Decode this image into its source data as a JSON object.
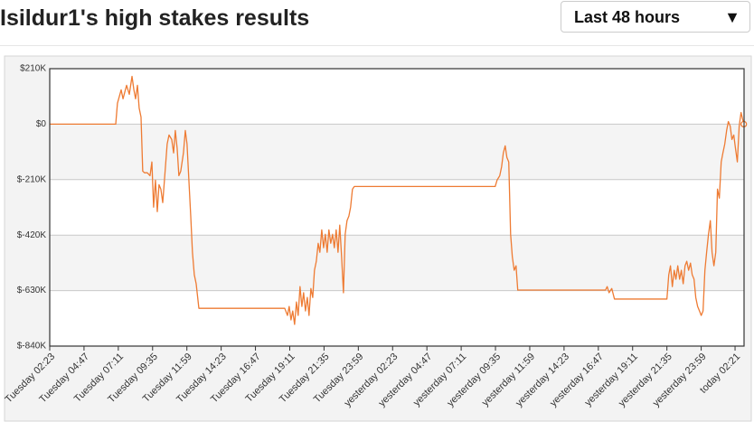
{
  "header": {
    "title": "Isildur1's high stakes results"
  },
  "dropdown": {
    "label": "Last 48 hours",
    "icon": "▼"
  },
  "chart_data": {
    "type": "line",
    "x": [
      0,
      4.62,
      4.74,
      5.0,
      5.13,
      5.38,
      5.57,
      5.76,
      5.89,
      6.01,
      6.14,
      6.26,
      6.39,
      6.51,
      6.64,
      6.83,
      7.02,
      7.15,
      7.27,
      7.4,
      7.53,
      7.65,
      7.78,
      7.91,
      8.03,
      8.22,
      8.35,
      8.54,
      8.67,
      8.79,
      8.92,
      9.04,
      9.17,
      9.36,
      9.49,
      9.61,
      9.74,
      9.87,
      9.99,
      10.12,
      10.25,
      10.44,
      16.45,
      16.64,
      16.76,
      16.89,
      17.01,
      17.14,
      17.27,
      17.39,
      17.52,
      17.65,
      17.77,
      17.9,
      18.03,
      18.15,
      18.28,
      18.41,
      18.53,
      18.66,
      18.79,
      18.91,
      19.04,
      19.17,
      19.29,
      19.42,
      19.54,
      19.67,
      19.8,
      19.92,
      20.05,
      20.18,
      20.3,
      20.43,
      20.56,
      20.68,
      20.81,
      20.94,
      21.06,
      21.19,
      21.32,
      31.18,
      31.31,
      31.5,
      31.63,
      31.75,
      31.88,
      32.0,
      32.13,
      32.26,
      32.38,
      32.51,
      32.64,
      32.76,
      38.9,
      39.02,
      39.15,
      39.34,
      39.53,
      43.2,
      43.33,
      43.45,
      43.58,
      43.71,
      43.83,
      43.96,
      44.09,
      44.21,
      44.34,
      44.47,
      44.59,
      44.72,
      44.85,
      44.97,
      45.1,
      45.22,
      45.35,
      45.48,
      45.6,
      45.73,
      45.86,
      45.98,
      46.11,
      46.24,
      46.36,
      46.49,
      46.62,
      46.74,
      46.87,
      47.0,
      47.12,
      47.25,
      47.38,
      47.5,
      47.63,
      47.75,
      47.88,
      48.0,
      48.13,
      48.26,
      48.39,
      48.58
    ],
    "series": [
      {
        "name": "Isildur1",
        "color": "#ee7b33",
        "values": [
          0,
          0,
          79000,
          130000,
          96000,
          147000,
          113000,
          181000,
          130000,
          96000,
          147000,
          61000,
          27000,
          -178000,
          -184000,
          -184000,
          -195000,
          -143000,
          -314000,
          -212000,
          -331000,
          -229000,
          -246000,
          -297000,
          -212000,
          -75000,
          -41000,
          -58000,
          -109000,
          -24000,
          -92000,
          -195000,
          -178000,
          -109000,
          -24000,
          -75000,
          -212000,
          -348000,
          -485000,
          -570000,
          -604000,
          -697000,
          -697000,
          -724000,
          -690000,
          -741000,
          -707000,
          -758000,
          -673000,
          -724000,
          -615000,
          -690000,
          -638000,
          -707000,
          -656000,
          -724000,
          -622000,
          -656000,
          -553000,
          -519000,
          -451000,
          -485000,
          -400000,
          -468000,
          -417000,
          -485000,
          -400000,
          -451000,
          -417000,
          -468000,
          -400000,
          -485000,
          -382000,
          -502000,
          -638000,
          -417000,
          -365000,
          -348000,
          -314000,
          -246000,
          -236000,
          -236000,
          -212000,
          -195000,
          -161000,
          -109000,
          -82000,
          -126000,
          -143000,
          -417000,
          -502000,
          -553000,
          -536000,
          -628000,
          -628000,
          -615000,
          -638000,
          -622000,
          -662000,
          -662000,
          -570000,
          -536000,
          -615000,
          -553000,
          -587000,
          -536000,
          -587000,
          -553000,
          -604000,
          -536000,
          -519000,
          -553000,
          -526000,
          -570000,
          -587000,
          -656000,
          -690000,
          -707000,
          -724000,
          -707000,
          -553000,
          -485000,
          -417000,
          -365000,
          -485000,
          -536000,
          -485000,
          -246000,
          -280000,
          -143000,
          -109000,
          -75000,
          -24000,
          10000,
          -7000,
          -58000,
          -41000,
          -92000,
          -143000,
          -7000,
          44000,
          0
        ]
      }
    ],
    "xlim": [
      0,
      48.6
    ],
    "xticks": [
      {
        "value": 0,
        "label": "Tuesday 02:23"
      },
      {
        "value": 2.4,
        "label": "Tuesday 04:47"
      },
      {
        "value": 4.8,
        "label": "Tuesday 07:11"
      },
      {
        "value": 7.2,
        "label": "Tuesday 09:35"
      },
      {
        "value": 9.6,
        "label": "Tuesday 11:59"
      },
      {
        "value": 12,
        "label": "Tuesday 14:23"
      },
      {
        "value": 14.4,
        "label": "Tuesday 16:47"
      },
      {
        "value": 16.8,
        "label": "Tuesday 19:11"
      },
      {
        "value": 19.2,
        "label": "Tuesday 21:35"
      },
      {
        "value": 21.6,
        "label": "Tuesday 23:59"
      },
      {
        "value": 24,
        "label": "yesterday 02:23"
      },
      {
        "value": 26.4,
        "label": "yesterday 04:47"
      },
      {
        "value": 28.8,
        "label": "yesterday 07:11"
      },
      {
        "value": 31.2,
        "label": "yesterday 09:35"
      },
      {
        "value": 33.6,
        "label": "yesterday 11:59"
      },
      {
        "value": 36,
        "label": "yesterday 14:23"
      },
      {
        "value": 38.4,
        "label": "yesterday 16:47"
      },
      {
        "value": 40.8,
        "label": "yesterday 19:11"
      },
      {
        "value": 43.2,
        "label": "yesterday 21:35"
      },
      {
        "value": 45.6,
        "label": "yesterday 23:59"
      },
      {
        "value": 47.97,
        "label": "today 02:21"
      }
    ],
    "ylim": [
      -840000,
      210000
    ],
    "yticks": [
      {
        "value": -840000,
        "label": "$-840K"
      },
      {
        "value": -630000,
        "label": "$-630K"
      },
      {
        "value": -420000,
        "label": "$-420K"
      },
      {
        "value": -210000,
        "label": "$-210K"
      },
      {
        "value": 0,
        "label": "$0"
      },
      {
        "value": 210000,
        "label": "$210K"
      }
    ],
    "grid": true
  }
}
